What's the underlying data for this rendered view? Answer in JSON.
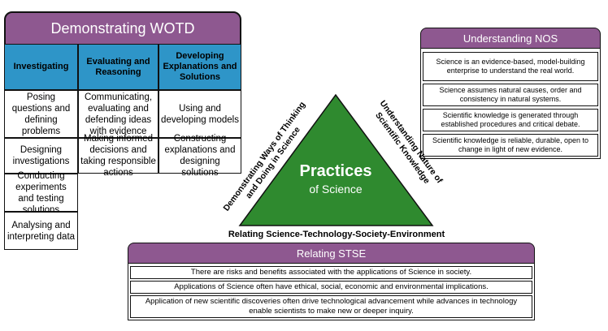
{
  "wotd": {
    "title": "Demonstrating WOTD",
    "columns": [
      {
        "header": "Investigating",
        "cells": [
          "Posing questions and defining problems",
          "Designing investigations",
          "Conducting experiments and testing solutions",
          "Analysing and interpreting data"
        ]
      },
      {
        "header": "Evaluating and Reasoning",
        "cells": [
          "Communicating, evaluating and defending ideas with evidence",
          "Making informed decisions and taking responsible actions"
        ]
      },
      {
        "header": "Developing Explanations and Solutions",
        "cells": [
          "Using and developing models",
          "Constructing explanations and designing solutions"
        ]
      }
    ]
  },
  "nos": {
    "title": "Understanding NOS",
    "items": [
      "Science is an evidence-based, model-building enterprise to understand the real world.",
      "Science assumes natural causes, order and consistency in natural systems.",
      "Scientific knowledge is generated through established procedures and critical debate.",
      "Scientific knowledge is reliable, durable, open to change in light of new evidence."
    ]
  },
  "triangle": {
    "title": "Practices",
    "subtitle": "of Science",
    "left_side": "Demonstrating Ways of Thinking and Doing in Science",
    "right_side": "Understanding Nature of Scientific Knowledge",
    "base": "Relating Science-Technology-Society-Environment",
    "fill_color": "#2f8a2f"
  },
  "stse": {
    "title": "Relating STSE",
    "items": [
      "There are risks and benefits associated with the applications of Science in society.",
      "Applications of Science often have ethical, social, economic and environmental implications.",
      "Application of new scientific discoveries often drive technological advancement while advances in technology enable scientists to make new or deeper inquiry."
    ]
  },
  "colors": {
    "panel_header": "#8e5890",
    "column_header": "#2e95c8"
  }
}
